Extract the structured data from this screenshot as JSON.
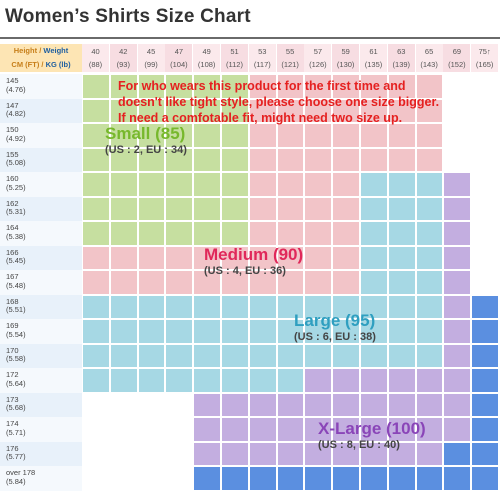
{
  "title": "Women’s Shirts Size Chart",
  "header": {
    "height_label": "Height",
    "weight_label": "Weight",
    "height_unit": "CM (FT)",
    "weight_unit": "KG (lb)",
    "weights": [
      {
        "kg": "40",
        "lb": "(88)"
      },
      {
        "kg": "42",
        "lb": "(93)"
      },
      {
        "kg": "45",
        "lb": "(99)"
      },
      {
        "kg": "47",
        "lb": "(104)"
      },
      {
        "kg": "49",
        "lb": "(108)"
      },
      {
        "kg": "51",
        "lb": "(112)"
      },
      {
        "kg": "53",
        "lb": "(117)"
      },
      {
        "kg": "55",
        "lb": "(121)"
      },
      {
        "kg": "57",
        "lb": "(126)"
      },
      {
        "kg": "59",
        "lb": "(130)"
      },
      {
        "kg": "61",
        "lb": "(135)"
      },
      {
        "kg": "63",
        "lb": "(139)"
      },
      {
        "kg": "65",
        "lb": "(143)"
      },
      {
        "kg": "69",
        "lb": "(152)"
      },
      {
        "kg": "75↑",
        "lb": "(165)"
      }
    ]
  },
  "heights": [
    {
      "cm": "145",
      "ft": "(4.76)"
    },
    {
      "cm": "147",
      "ft": "(4.82)"
    },
    {
      "cm": "150",
      "ft": "(4.92)"
    },
    {
      "cm": "155",
      "ft": "(5.08)"
    },
    {
      "cm": "160",
      "ft": "(5.25)"
    },
    {
      "cm": "162",
      "ft": "(5.31)"
    },
    {
      "cm": "164",
      "ft": "(5.38)"
    },
    {
      "cm": "166",
      "ft": "(5.45)"
    },
    {
      "cm": "167",
      "ft": "(5.48)"
    },
    {
      "cm": "168",
      "ft": "(5.51)"
    },
    {
      "cm": "169",
      "ft": "(5.54)"
    },
    {
      "cm": "170",
      "ft": "(5.58)"
    },
    {
      "cm": "172",
      "ft": "(5.64)"
    },
    {
      "cm": "173",
      "ft": "(5.68)"
    },
    {
      "cm": "174",
      "ft": "(5.71)"
    },
    {
      "cm": "176",
      "ft": "(5.77)"
    },
    {
      "cm": "over 178",
      "ft": "(5.84)"
    }
  ],
  "notice": [
    "For who wears this product for the first time and",
    "doesn't like tight style, please choose one size bigger.",
    "If need a comfotable fit, might need two size up."
  ],
  "sizes": [
    {
      "key": "S",
      "name": "Small (85)",
      "sub": "(US : 2, EU : 34)",
      "color": "#c6dfa0",
      "text_color": "#77b82c"
    },
    {
      "key": "M",
      "name": "Medium (90)",
      "sub": "(US : 4, EU : 36)",
      "color": "#f2c4c8",
      "text_color": "#e0285a"
    },
    {
      "key": "L",
      "name": "Large (95)",
      "sub": "(US : 6, EU : 38)",
      "color": "#a6d8e4",
      "text_color": "#2f9fc0"
    },
    {
      "key": "X",
      "name": "X-Large (100)",
      "sub": "(US : 8, EU : 40)",
      "color": "#c3aee0",
      "text_color": "#8a45b8"
    },
    {
      "key": "B",
      "name": "",
      "sub": "",
      "color": "#5b8fe0",
      "text_color": ""
    }
  ],
  "fit_map": [
    "SSSSSSMMMMMMM..",
    "SSSSSSMMMMMMM..",
    "SSSSSSMMMMMMM..",
    "SSSSSSMMMMMMM..",
    "SSSSSSMMMMLLLX.",
    "SSSSSSMMMMLLLX.",
    "SSSSSSMMMMLLLX.",
    "MMMMMMMMMMLLLX.",
    "MMMMMMMMMMLLLX.",
    "LLLLLLLLLLLLLXB",
    "LLLLLLLLLLLLLXB",
    "LLLLLLLLLLLLLXB",
    "LLLLLLLLXXXXXXB",
    "....XXXXXXXXXXB",
    "....XXXXXXXXXXB",
    "....XXXXXXXXXBB",
    "....BBBBBBBBBBB"
  ]
}
